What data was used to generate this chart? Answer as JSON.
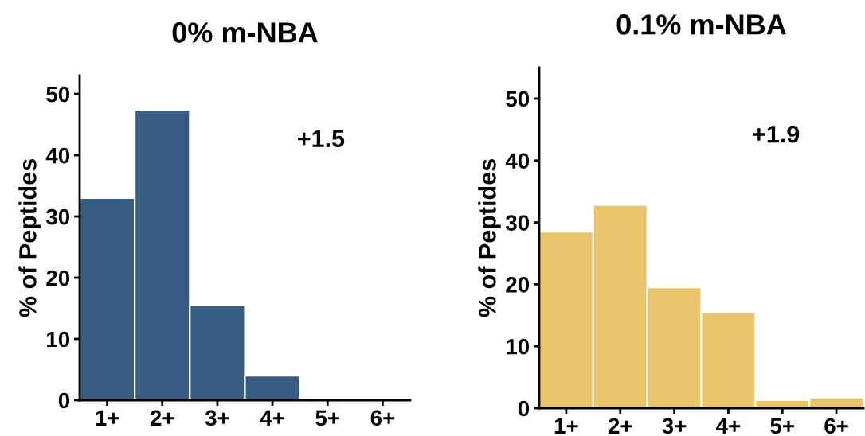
{
  "chart_data": [
    {
      "type": "bar",
      "title": "0% m-NBA",
      "ylabel": "% of Peptides",
      "categories": [
        "1+",
        "2+",
        "3+",
        "4+",
        "5+",
        "6+"
      ],
      "values": [
        33.0,
        47.4,
        15.5,
        4.0,
        0,
        0
      ],
      "color": "#385d85",
      "ylim": [
        0,
        53
      ],
      "yticks": [
        0,
        10,
        20,
        30,
        40,
        50
      ],
      "grid": false,
      "annotations": [
        "+1.5"
      ]
    },
    {
      "type": "bar",
      "title": "0.1% m-NBA",
      "ylabel": "% of Peptides",
      "categories": [
        "1+",
        "2+",
        "3+",
        "4+",
        "5+",
        "6+"
      ],
      "values": [
        28.5,
        32.8,
        19.5,
        15.5,
        1.3,
        1.7
      ],
      "color": "#e9c46a",
      "ylim": [
        0,
        55
      ],
      "yticks": [
        0,
        10,
        20,
        30,
        40,
        50
      ],
      "grid": false,
      "annotations": [
        "+1.9"
      ]
    }
  ]
}
